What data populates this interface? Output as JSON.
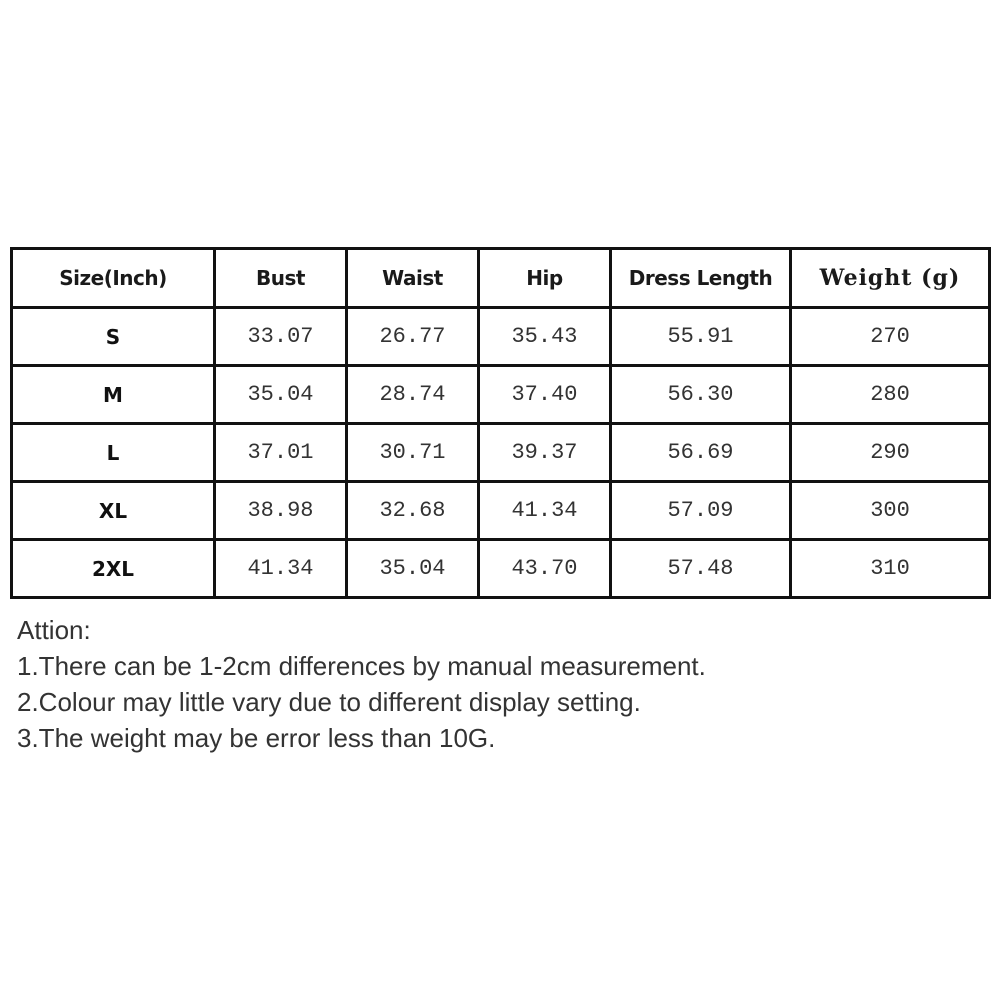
{
  "table": {
    "headers": [
      "Size(Inch)",
      "Bust",
      "Waist",
      "Hip",
      "Dress Length",
      "Weight (g)"
    ],
    "rows": [
      [
        "S",
        "33.07",
        "26.77",
        "35.43",
        "55.91",
        "270"
      ],
      [
        "M",
        "35.04",
        "28.74",
        "37.40",
        "56.30",
        "280"
      ],
      [
        "L",
        "37.01",
        "30.71",
        "39.37",
        "56.69",
        "290"
      ],
      [
        "XL",
        "38.98",
        "32.68",
        "41.34",
        "57.09",
        "300"
      ],
      [
        "2XL",
        "41.34",
        "35.04",
        "43.70",
        "57.48",
        "310"
      ]
    ]
  },
  "notes": {
    "title": "Attion:",
    "items": [
      "1.There can be 1-2cm differences by manual measurement.",
      "2.Colour may little vary due to different display setting.",
      "3.The weight may be error less than 10G."
    ]
  }
}
